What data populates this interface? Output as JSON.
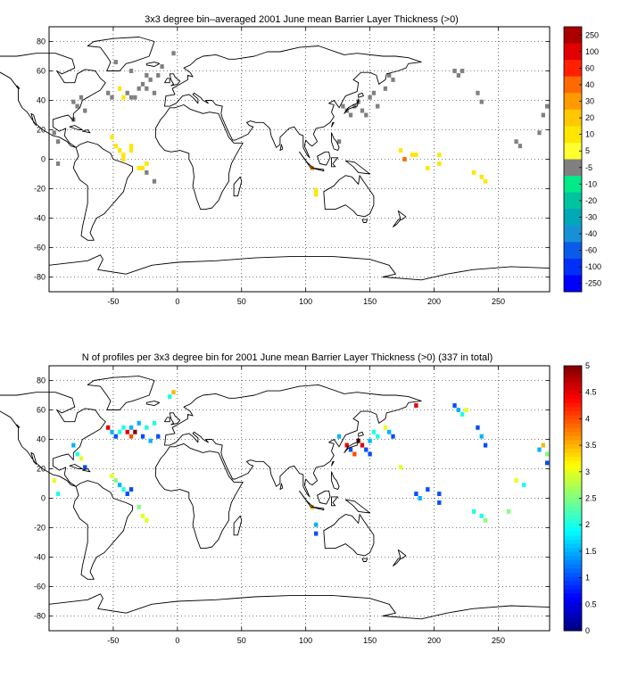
{
  "figure": {
    "panels": [
      {
        "title": "3x3 degree bin–averaged 2001 June mean Barrier Layer Thickness (>0)",
        "xticks": [
          "-50",
          "0",
          "50",
          "100",
          "150",
          "200",
          "250"
        ],
        "yticks": [
          "80",
          "60",
          "40",
          "20",
          "0",
          "-20",
          "-40",
          "-60",
          "-80"
        ],
        "colorbar_labels": [
          "250",
          "100",
          "60",
          "40",
          "30",
          "20",
          "10",
          "5",
          "-5",
          "-10",
          "-20",
          "-30",
          "-40",
          "-60",
          "-100",
          "-250"
        ]
      },
      {
        "title": "N of profiles per 3x3 degree bin for 2001 June mean Barrier Layer Thickness (>0) (337 in total)",
        "xticks": [
          "-50",
          "0",
          "50",
          "100",
          "150",
          "200",
          "250"
        ],
        "yticks": [
          "80",
          "60",
          "40",
          "20",
          "0",
          "-20",
          "-40",
          "-60",
          "-80"
        ],
        "colorbar_labels": [
          "5",
          "4.5",
          "4",
          "3.5",
          "3",
          "2.5",
          "2",
          "1.5",
          "1",
          "0.5",
          "0"
        ]
      }
    ]
  },
  "chart_data": [
    {
      "type": "heatmap",
      "title": "3x3 degree bin–averaged 2001 June mean Barrier Layer Thickness (>0)",
      "xlim": [
        -100,
        290
      ],
      "ylim": [
        -90,
        90
      ],
      "bin_size_deg": 3,
      "grid": true,
      "colorbar": {
        "position": "right",
        "levels": [
          250,
          100,
          60,
          40,
          30,
          20,
          10,
          5,
          -5,
          -10,
          -20,
          -30,
          -40,
          -60,
          -100,
          -250
        ],
        "colors": [
          "#aa0000",
          "#e20000",
          "#ff2000",
          "#ff6a00",
          "#ff9a00",
          "#ffc800",
          "#ffe600",
          "#ffff30",
          "#808080",
          "#00ea8a",
          "#00c4a0",
          "#00a8b8",
          "#1890d8",
          "#0a5ce8",
          "#0030f8",
          "#0000ff"
        ]
      },
      "cells": [
        {
          "lon": -96,
          "lat": 18,
          "v": 0
        },
        {
          "lon": -93,
          "lat": 12,
          "v": 0
        },
        {
          "lon": -93,
          "lat": -3,
          "v": 0
        },
        {
          "lon": -81,
          "lat": 27,
          "v": 0
        },
        {
          "lon": -81,
          "lat": 39,
          "v": 0
        },
        {
          "lon": -78,
          "lat": 36,
          "v": 0
        },
        {
          "lon": -75,
          "lat": 42,
          "v": 0
        },
        {
          "lon": -72,
          "lat": 33,
          "v": 0
        },
        {
          "lon": -54,
          "lat": 45,
          "v": 0
        },
        {
          "lon": -51,
          "lat": 42,
          "v": 0
        },
        {
          "lon": -48,
          "lat": 66,
          "v": 0
        },
        {
          "lon": -45,
          "lat": 48,
          "v": 15
        },
        {
          "lon": -42,
          "lat": 42,
          "v": 15
        },
        {
          "lon": -39,
          "lat": 45,
          "v": 0
        },
        {
          "lon": -36,
          "lat": 42,
          "v": 0
        },
        {
          "lon": -33,
          "lat": 42,
          "v": 0
        },
        {
          "lon": -36,
          "lat": 60,
          "v": 0
        },
        {
          "lon": -30,
          "lat": 48,
          "v": 0
        },
        {
          "lon": -27,
          "lat": 51,
          "v": 0
        },
        {
          "lon": -24,
          "lat": 48,
          "v": 0
        },
        {
          "lon": -24,
          "lat": 57,
          "v": 0
        },
        {
          "lon": -21,
          "lat": 54,
          "v": 0
        },
        {
          "lon": -18,
          "lat": 45,
          "v": 0
        },
        {
          "lon": -15,
          "lat": 57,
          "v": 0
        },
        {
          "lon": -12,
          "lat": 63,
          "v": 0
        },
        {
          "lon": -3,
          "lat": 72,
          "v": 0
        },
        {
          "lon": -51,
          "lat": 15,
          "v": 15
        },
        {
          "lon": -48,
          "lat": 9,
          "v": 10
        },
        {
          "lon": -45,
          "lat": 6,
          "v": 15
        },
        {
          "lon": -42,
          "lat": 3,
          "v": 15
        },
        {
          "lon": -42,
          "lat": 0,
          "v": 15
        },
        {
          "lon": -36,
          "lat": 9,
          "v": 15
        },
        {
          "lon": -36,
          "lat": 6,
          "v": 15
        },
        {
          "lon": -30,
          "lat": -6,
          "v": 15
        },
        {
          "lon": -27,
          "lat": -6,
          "v": 15
        },
        {
          "lon": -24,
          "lat": -3,
          "v": 15
        },
        {
          "lon": -24,
          "lat": -9,
          "v": 0
        },
        {
          "lon": -18,
          "lat": -15,
          "v": 0
        },
        {
          "lon": 105,
          "lat": -6,
          "v": 35
        },
        {
          "lon": 108,
          "lat": -21,
          "v": 15
        },
        {
          "lon": 108,
          "lat": -24,
          "v": 15
        },
        {
          "lon": 126,
          "lat": 12,
          "v": 0
        },
        {
          "lon": 129,
          "lat": 36,
          "v": 0
        },
        {
          "lon": 132,
          "lat": 33,
          "v": 0
        },
        {
          "lon": 135,
          "lat": 30,
          "v": 0
        },
        {
          "lon": 138,
          "lat": 36,
          "v": 0
        },
        {
          "lon": 141,
          "lat": 39,
          "v": 0
        },
        {
          "lon": 144,
          "lat": 33,
          "v": 0
        },
        {
          "lon": 147,
          "lat": 30,
          "v": 0
        },
        {
          "lon": 150,
          "lat": 42,
          "v": 0
        },
        {
          "lon": 153,
          "lat": 45,
          "v": 0
        },
        {
          "lon": 156,
          "lat": 36,
          "v": 0
        },
        {
          "lon": 162,
          "lat": 48,
          "v": 0
        },
        {
          "lon": 165,
          "lat": 57,
          "v": 0
        },
        {
          "lon": 168,
          "lat": 54,
          "v": 0
        },
        {
          "lon": 174,
          "lat": 6,
          "v": 15
        },
        {
          "lon": 177,
          "lat": 0,
          "v": 40
        },
        {
          "lon": 183,
          "lat": 3,
          "v": 15
        },
        {
          "lon": 186,
          "lat": 3,
          "v": 15
        },
        {
          "lon": 195,
          "lat": -6,
          "v": 15
        },
        {
          "lon": 204,
          "lat": 3,
          "v": 15
        },
        {
          "lon": 204,
          "lat": -3,
          "v": 15
        },
        {
          "lon": 216,
          "lat": 60,
          "v": 0
        },
        {
          "lon": 219,
          "lat": 57,
          "v": 0
        },
        {
          "lon": 222,
          "lat": 60,
          "v": 0
        },
        {
          "lon": 234,
          "lat": 45,
          "v": 0
        },
        {
          "lon": 237,
          "lat": 39,
          "v": 0
        },
        {
          "lon": 231,
          "lat": -9,
          "v": 15
        },
        {
          "lon": 237,
          "lat": -12,
          "v": 15
        },
        {
          "lon": 240,
          "lat": -15,
          "v": 15
        },
        {
          "lon": 264,
          "lat": 12,
          "v": 0
        },
        {
          "lon": 267,
          "lat": 9,
          "v": 0
        },
        {
          "lon": 282,
          "lat": 18,
          "v": 0
        },
        {
          "lon": 285,
          "lat": 30,
          "v": 0
        },
        {
          "lon": 288,
          "lat": 36,
          "v": 0
        }
      ]
    },
    {
      "type": "heatmap",
      "title": "N of profiles per 3x3 degree bin for 2001 June mean Barrier Layer Thickness (>0) (337 in total)",
      "xlim": [
        -100,
        290
      ],
      "ylim": [
        -90,
        90
      ],
      "bin_size_deg": 3,
      "grid": true,
      "colorbar": {
        "position": "right",
        "min": 0,
        "max": 5,
        "ticks": [
          5,
          4.5,
          4,
          3.5,
          3,
          2.5,
          2,
          1.5,
          1,
          0.5,
          0
        ],
        "colormap": "jet"
      },
      "cells": [
        {
          "lon": -96,
          "lat": 12,
          "v": 3
        },
        {
          "lon": -93,
          "lat": 3,
          "v": 2
        },
        {
          "lon": -81,
          "lat": 36,
          "v": 1.5
        },
        {
          "lon": -78,
          "lat": 30,
          "v": 2
        },
        {
          "lon": -75,
          "lat": 27,
          "v": 3
        },
        {
          "lon": -72,
          "lat": 21,
          "v": 1
        },
        {
          "lon": -54,
          "lat": 48,
          "v": 4.5
        },
        {
          "lon": -51,
          "lat": 45,
          "v": 1.5
        },
        {
          "lon": -48,
          "lat": 42,
          "v": 1
        },
        {
          "lon": -45,
          "lat": 45,
          "v": 2
        },
        {
          "lon": -42,
          "lat": 48,
          "v": 2
        },
        {
          "lon": -39,
          "lat": 45,
          "v": 4.5
        },
        {
          "lon": -36,
          "lat": 42,
          "v": 4
        },
        {
          "lon": -36,
          "lat": 48,
          "v": 1.5
        },
        {
          "lon": -33,
          "lat": 45,
          "v": 5
        },
        {
          "lon": -30,
          "lat": 51,
          "v": 1.5
        },
        {
          "lon": -27,
          "lat": 42,
          "v": 1
        },
        {
          "lon": -24,
          "lat": 48,
          "v": 2
        },
        {
          "lon": -21,
          "lat": 39,
          "v": 1.5
        },
        {
          "lon": -18,
          "lat": 51,
          "v": 2
        },
        {
          "lon": -15,
          "lat": 42,
          "v": 1
        },
        {
          "lon": -6,
          "lat": 69,
          "v": 2
        },
        {
          "lon": -3,
          "lat": 72,
          "v": 3.5
        },
        {
          "lon": -51,
          "lat": 15,
          "v": 3
        },
        {
          "lon": -48,
          "lat": 12,
          "v": 2.5
        },
        {
          "lon": -45,
          "lat": 9,
          "v": 1.5
        },
        {
          "lon": -42,
          "lat": 6,
          "v": 2
        },
        {
          "lon": -39,
          "lat": 3,
          "v": 1
        },
        {
          "lon": -36,
          "lat": 6,
          "v": 1
        },
        {
          "lon": -30,
          "lat": -6,
          "v": 2.5
        },
        {
          "lon": -27,
          "lat": -12,
          "v": 3
        },
        {
          "lon": -24,
          "lat": -15,
          "v": 3
        },
        {
          "lon": 105,
          "lat": -6,
          "v": 3.5
        },
        {
          "lon": 108,
          "lat": -18,
          "v": 1.5
        },
        {
          "lon": 108,
          "lat": -24,
          "v": 1
        },
        {
          "lon": 126,
          "lat": 42,
          "v": 1.5
        },
        {
          "lon": 132,
          "lat": 36,
          "v": 4.5
        },
        {
          "lon": 135,
          "lat": 33,
          "v": 1
        },
        {
          "lon": 138,
          "lat": 30,
          "v": 4
        },
        {
          "lon": 141,
          "lat": 39,
          "v": 5
        },
        {
          "lon": 144,
          "lat": 36,
          "v": 4.5
        },
        {
          "lon": 147,
          "lat": 33,
          "v": 1
        },
        {
          "lon": 150,
          "lat": 39,
          "v": 1.5
        },
        {
          "lon": 150,
          "lat": 30,
          "v": 1
        },
        {
          "lon": 153,
          "lat": 45,
          "v": 2
        },
        {
          "lon": 156,
          "lat": 42,
          "v": 2
        },
        {
          "lon": 162,
          "lat": 48,
          "v": 3
        },
        {
          "lon": 165,
          "lat": 45,
          "v": 1.5
        },
        {
          "lon": 168,
          "lat": 42,
          "v": 1
        },
        {
          "lon": 174,
          "lat": 21,
          "v": 3
        },
        {
          "lon": 186,
          "lat": 3,
          "v": 1
        },
        {
          "lon": 189,
          "lat": 0,
          "v": 1.5
        },
        {
          "lon": 195,
          "lat": 6,
          "v": 1
        },
        {
          "lon": 204,
          "lat": 3,
          "v": 1
        },
        {
          "lon": 204,
          "lat": -3,
          "v": 1
        },
        {
          "lon": 186,
          "lat": 63,
          "v": 4.5
        },
        {
          "lon": 216,
          "lat": 63,
          "v": 1
        },
        {
          "lon": 219,
          "lat": 60,
          "v": 1.5
        },
        {
          "lon": 222,
          "lat": 57,
          "v": 2
        },
        {
          "lon": 225,
          "lat": 60,
          "v": 3
        },
        {
          "lon": 234,
          "lat": 48,
          "v": 1
        },
        {
          "lon": 237,
          "lat": 42,
          "v": 1.5
        },
        {
          "lon": 240,
          "lat": 36,
          "v": 1
        },
        {
          "lon": 231,
          "lat": -9,
          "v": 2
        },
        {
          "lon": 237,
          "lat": -12,
          "v": 2
        },
        {
          "lon": 240,
          "lat": -15,
          "v": 2.5
        },
        {
          "lon": 258,
          "lat": -9,
          "v": 2.5
        },
        {
          "lon": 264,
          "lat": 12,
          "v": 3
        },
        {
          "lon": 270,
          "lat": 9,
          "v": 2
        },
        {
          "lon": 282,
          "lat": 33,
          "v": 1.5
        },
        {
          "lon": 285,
          "lat": 36,
          "v": 3.5
        },
        {
          "lon": 288,
          "lat": 24,
          "v": 1
        },
        {
          "lon": 288,
          "lat": 30,
          "v": 2.5
        }
      ]
    }
  ]
}
